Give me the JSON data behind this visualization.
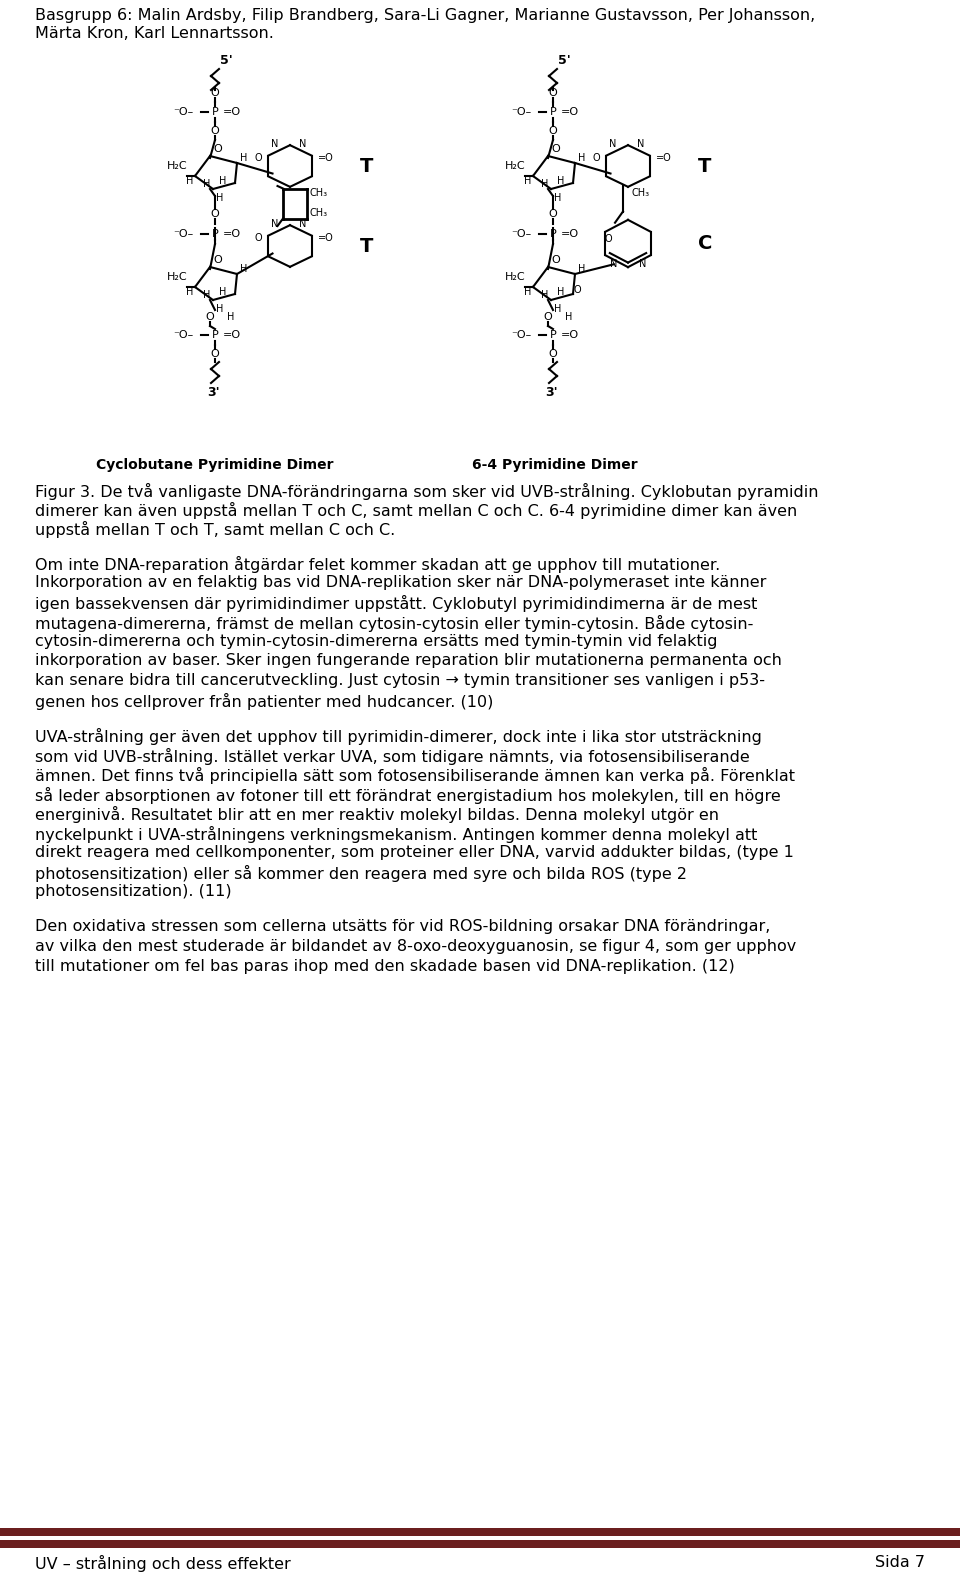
{
  "header_line1": "Basgrupp 6: Malin Ardsby, Filip Brandberg, Sara-Li Gagner, Marianne Gustavsson, Per Johansson,",
  "header_line2": "Märta Kron, Karl Lennartsson.",
  "fig_label_left": "Cyclobutane Pyrimidine Dimer",
  "fig_label_right": "6-4 Pyrimidine Dimer",
  "figcaption_lines": [
    "Figur 3. De två vanligaste DNA-förändringarna som sker vid UVB-strålning. Cyklobutan pyramidin",
    "dimerer kan även uppstå mellan T och C, samt mellan C och C. 6-4 pyrimidine dimer kan även",
    "uppstå mellan T och T, samt mellan C och C."
  ],
  "p1_lines": [
    "Om inte DNA-reparation åtgärdar felet kommer skadan att ge upphov till mutationer.",
    "Inkorporation av en felaktig bas vid DNA-replikation sker när DNA-polymeraset inte känner",
    "igen bassekvensen där pyrimidindimer uppstått. Cyklobutyl pyrimidindimerna är de mest",
    "mutagena-dimererna, främst de mellan cytosin-cytosin eller tymin-cytosin. Både cytosin-",
    "cytosin-dimererna och tymin-cytosin-dimererna ersätts med tymin-tymin vid felaktig",
    "inkorporation av baser. Sker ingen fungerande reparation blir mutationerna permanenta och",
    "kan senare bidra till cancerutveckling. Just cytosin → tymin transitioner ses vanligen i p53-",
    "genen hos cellprover från patienter med hudcancer. (10)"
  ],
  "p2_lines": [
    "UVA-strålning ger även det upphov till pyrimidin-dimerer, dock inte i lika stor utsträckning",
    "som vid UVB-strålning. Istället verkar UVA, som tidigare nämnts, via fotosensibiliserande",
    "ämnen. Det finns två principiella sätt som fotosensibiliserande ämnen kan verka på. Förenklat",
    "så leder absorptionen av fotoner till ett förändrat energistadium hos molekylen, till en högre",
    "energinivå. Resultatet blir att en mer reaktiv molekyl bildas. Denna molekyl utgör en",
    "nyckelpunkt i UVA-strålningens verkningsmekanism. Antingen kommer denna molekyl att",
    "direkt reagera med cellkomponenter, som proteiner eller DNA, varvid addukter bildas, (type 1",
    "photosensitization) eller så kommer den reagera med syre och bilda ROS (type 2",
    "photosensitization). (11)"
  ],
  "p3_lines": [
    "Den oxidativa stressen som cellerna utsätts för vid ROS-bildning orsakar DNA förändringar,",
    "av vilka den mest studerade är bildandet av 8-oxo-deoxyguanosin, se figur 4, som ger upphov",
    "till mutationer om fel bas paras ihop med den skadade basen vid DNA-replikation. (12)"
  ],
  "footer_left": "UV – strålning och dess effekter",
  "footer_right": "Sida 7",
  "footer_bar_color": "#6B1F1F",
  "background_color": "#ffffff",
  "text_color": "#000000"
}
